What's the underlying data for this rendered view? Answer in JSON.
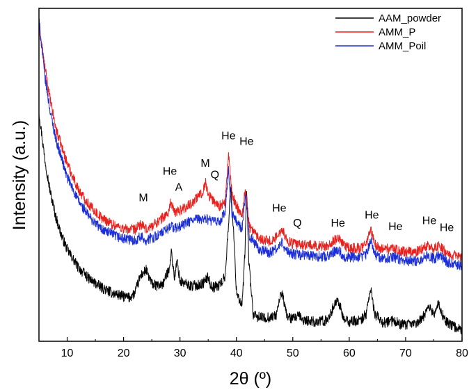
{
  "chart_data": {
    "type": "line",
    "xlabel": "2θ (º)",
    "ylabel": "Intensity (a.u.)",
    "xlim": [
      5,
      80
    ],
    "xticks": [
      10,
      20,
      30,
      40,
      50,
      60,
      70,
      80
    ],
    "y_tick_labels": false,
    "grid": false,
    "legend_position": "top-right",
    "series": [
      {
        "name": "AAM_powder",
        "color": "#000000",
        "points": [
          [
            5,
            200
          ],
          [
            6,
            160
          ],
          [
            7,
            130
          ],
          [
            8,
            108
          ],
          [
            9,
            92
          ],
          [
            10,
            80
          ],
          [
            12,
            64
          ],
          [
            14,
            54
          ],
          [
            16,
            47
          ],
          [
            18,
            42
          ],
          [
            20,
            39
          ],
          [
            21,
            38
          ],
          [
            22,
            42
          ],
          [
            23,
            57
          ],
          [
            24,
            62
          ],
          [
            25,
            50
          ],
          [
            26,
            48
          ],
          [
            27,
            50
          ],
          [
            28,
            62
          ],
          [
            28.5,
            78
          ],
          [
            29,
            55
          ],
          [
            29.5,
            70
          ],
          [
            30,
            52
          ],
          [
            32,
            48
          ],
          [
            34,
            50
          ],
          [
            35,
            56
          ],
          [
            35.5,
            48
          ],
          [
            36,
            47
          ],
          [
            37,
            49
          ],
          [
            38,
            56
          ],
          [
            38.5,
            95
          ],
          [
            39,
            135
          ],
          [
            39.5,
            95
          ],
          [
            40,
            44
          ],
          [
            41,
            30
          ],
          [
            41.5,
            75
          ],
          [
            41.8,
            133
          ],
          [
            42.2,
            70
          ],
          [
            43,
            22
          ],
          [
            45,
            20
          ],
          [
            47,
            22
          ],
          [
            48,
            43
          ],
          [
            49,
            22
          ],
          [
            50,
            19
          ],
          [
            51,
            22
          ],
          [
            52,
            18
          ],
          [
            54,
            17
          ],
          [
            56,
            18
          ],
          [
            58,
            37
          ],
          [
            59,
            19
          ],
          [
            60,
            17
          ],
          [
            62,
            18
          ],
          [
            63,
            24
          ],
          [
            63.8,
            46
          ],
          [
            64.5,
            24
          ],
          [
            66,
            16
          ],
          [
            68,
            18
          ],
          [
            69,
            15
          ],
          [
            70,
            14
          ],
          [
            72,
            16
          ],
          [
            73,
            20
          ],
          [
            74,
            31
          ],
          [
            75,
            24
          ],
          [
            75.8,
            32
          ],
          [
            77,
            18
          ],
          [
            78,
            14
          ],
          [
            80,
            10
          ]
        ]
      },
      {
        "name": "AMM_P",
        "color": "#e8221e",
        "points": [
          [
            5,
            275
          ],
          [
            6,
            240
          ],
          [
            7,
            210
          ],
          [
            8,
            185
          ],
          [
            10,
            155
          ],
          [
            12,
            132
          ],
          [
            14,
            118
          ],
          [
            16,
            108
          ],
          [
            18,
            102
          ],
          [
            20,
            98
          ],
          [
            22,
            97
          ],
          [
            23,
            102
          ],
          [
            24,
            97
          ],
          [
            26,
            104
          ],
          [
            28,
            112
          ],
          [
            28.3,
            122
          ],
          [
            29,
            112
          ],
          [
            30,
            114
          ],
          [
            32,
            120
          ],
          [
            33,
            125
          ],
          [
            34,
            130
          ],
          [
            34.5,
            139
          ],
          [
            35,
            128
          ],
          [
            36,
            122
          ],
          [
            37,
            118
          ],
          [
            38,
            120
          ],
          [
            38.6,
            163
          ],
          [
            39.2,
            128
          ],
          [
            40,
            118
          ],
          [
            41,
            110
          ],
          [
            41.6,
            133
          ],
          [
            42.3,
            100
          ],
          [
            44,
            90
          ],
          [
            46,
            87
          ],
          [
            47.5,
            92
          ],
          [
            48,
            100
          ],
          [
            49,
            87
          ],
          [
            50,
            85
          ],
          [
            51,
            84
          ],
          [
            52,
            84
          ],
          [
            54,
            83
          ],
          [
            56,
            83
          ],
          [
            58,
            90
          ],
          [
            59,
            83
          ],
          [
            60,
            81
          ],
          [
            62,
            81
          ],
          [
            63,
            85
          ],
          [
            63.8,
            97
          ],
          [
            64.7,
            83
          ],
          [
            66,
            80
          ],
          [
            68,
            81
          ],
          [
            69,
            78
          ],
          [
            70,
            78
          ],
          [
            72,
            78
          ],
          [
            74,
            84
          ],
          [
            75,
            80
          ],
          [
            76,
            84
          ],
          [
            77,
            78
          ],
          [
            78,
            76
          ],
          [
            80,
            72
          ]
        ]
      },
      {
        "name": "AMM_Poil",
        "color": "#1c2fd6",
        "points": [
          [
            5,
            280
          ],
          [
            6,
            232
          ],
          [
            7,
            200
          ],
          [
            8,
            176
          ],
          [
            10,
            143
          ],
          [
            12,
            122
          ],
          [
            14,
            108
          ],
          [
            16,
            98
          ],
          [
            18,
            93
          ],
          [
            20,
            89
          ],
          [
            22,
            88
          ],
          [
            23,
            91
          ],
          [
            24,
            88
          ],
          [
            26,
            92
          ],
          [
            28,
            98
          ],
          [
            28.3,
            102
          ],
          [
            29,
            98
          ],
          [
            30,
            100
          ],
          [
            32,
            105
          ],
          [
            34,
            107
          ],
          [
            35,
            106
          ],
          [
            36,
            104
          ],
          [
            37,
            104
          ],
          [
            38,
            112
          ],
          [
            38.6,
            148
          ],
          [
            39.2,
            112
          ],
          [
            40,
            104
          ],
          [
            41,
            98
          ],
          [
            41.6,
            125
          ],
          [
            42.3,
            92
          ],
          [
            44,
            80
          ],
          [
            46,
            77
          ],
          [
            47.5,
            82
          ],
          [
            48,
            86
          ],
          [
            49,
            78
          ],
          [
            50,
            76
          ],
          [
            52,
            75
          ],
          [
            54,
            74
          ],
          [
            56,
            74
          ],
          [
            58,
            80
          ],
          [
            59,
            74
          ],
          [
            60,
            73
          ],
          [
            62,
            73
          ],
          [
            63,
            76
          ],
          [
            63.8,
            88
          ],
          [
            64.7,
            75
          ],
          [
            66,
            72
          ],
          [
            68,
            73
          ],
          [
            70,
            70
          ],
          [
            72,
            70
          ],
          [
            74,
            75
          ],
          [
            75,
            72
          ],
          [
            76,
            75
          ],
          [
            77,
            70
          ],
          [
            78,
            68
          ],
          [
            80,
            66
          ]
        ]
      }
    ],
    "annotations": [
      {
        "text": "M",
        "x": 23.5,
        "y": 122
      },
      {
        "text": "He",
        "x": 28.2,
        "y": 145
      },
      {
        "text": "A",
        "x": 29.8,
        "y": 131
      },
      {
        "text": "M",
        "x": 34.5,
        "y": 152
      },
      {
        "text": "Q",
        "x": 36.2,
        "y": 142
      },
      {
        "text": "He",
        "x": 38.6,
        "y": 176
      },
      {
        "text": "He",
        "x": 41.8,
        "y": 171
      },
      {
        "text": "He",
        "x": 47.6,
        "y": 113
      },
      {
        "text": "Q",
        "x": 50.8,
        "y": 100
      },
      {
        "text": "He",
        "x": 58.0,
        "y": 100
      },
      {
        "text": "He",
        "x": 64.0,
        "y": 107
      },
      {
        "text": "He",
        "x": 68.2,
        "y": 97
      },
      {
        "text": "He",
        "x": 74.2,
        "y": 102
      },
      {
        "text": "He",
        "x": 77.3,
        "y": 96
      }
    ]
  }
}
